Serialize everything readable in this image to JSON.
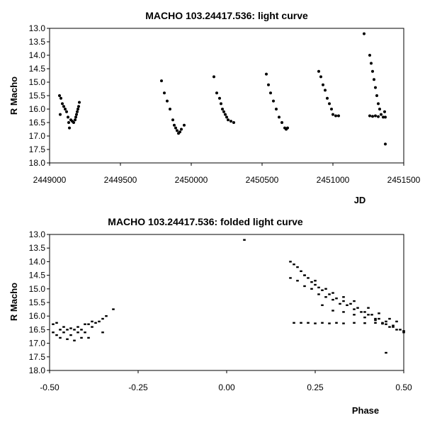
{
  "chart_data": [
    {
      "type": "scatter",
      "title": "MACHO 103.24417.536: light curve",
      "xlabel": "JD",
      "ylabel": "R Macho",
      "xlim": [
        2449000,
        2451500
      ],
      "ylim": [
        13.0,
        18.0
      ],
      "y_inverted": true,
      "xticks": [
        2449000,
        2449500,
        2450000,
        2450500,
        2451000,
        2451500
      ],
      "xtick_labels": [
        "2449000",
        "2449500",
        "2450000",
        "2450500",
        "2451000",
        "2451500"
      ],
      "yticks": [
        13.0,
        13.5,
        14.0,
        14.5,
        15.0,
        15.5,
        16.0,
        16.5,
        17.0,
        17.5,
        18.0
      ],
      "ytick_labels": [
        "13.0",
        "13.5",
        "14.0",
        "14.5",
        "15.0",
        "15.5",
        "16.0",
        "16.5",
        "17.0",
        "17.5",
        "18.0"
      ],
      "grid": false,
      "legend": "none",
      "marker_color": "#000000",
      "series": [
        {
          "points": [
            [
              2449070,
              15.5
            ],
            [
              2449080,
              15.6
            ],
            [
              2449075,
              16.2
            ],
            [
              2449090,
              15.8
            ],
            [
              2449100,
              15.9
            ],
            [
              2449110,
              16.0
            ],
            [
              2449120,
              16.1
            ],
            [
              2449130,
              16.3
            ],
            [
              2449135,
              16.5
            ],
            [
              2449140,
              16.7
            ],
            [
              2449150,
              16.4
            ],
            [
              2449160,
              16.45
            ],
            [
              2449170,
              16.5
            ],
            [
              2449180,
              16.4
            ],
            [
              2449190,
              16.2
            ],
            [
              2449200,
              16.0
            ],
            [
              2449205,
              15.9
            ],
            [
              2449210,
              15.75
            ],
            [
              2449195,
              16.1
            ],
            [
              2449185,
              16.3
            ],
            [
              2449790,
              14.95
            ],
            [
              2449810,
              15.4
            ],
            [
              2449830,
              15.7
            ],
            [
              2449850,
              16.0
            ],
            [
              2449870,
              16.4
            ],
            [
              2449880,
              16.6
            ],
            [
              2449890,
              16.7
            ],
            [
              2449900,
              16.8
            ],
            [
              2449910,
              16.9
            ],
            [
              2449920,
              16.85
            ],
            [
              2449930,
              16.75
            ],
            [
              2449950,
              16.6
            ],
            [
              2450160,
              14.8
            ],
            [
              2450180,
              15.4
            ],
            [
              2450200,
              15.6
            ],
            [
              2450210,
              15.8
            ],
            [
              2450220,
              16.0
            ],
            [
              2450230,
              16.1
            ],
            [
              2450240,
              16.2
            ],
            [
              2450250,
              16.3
            ],
            [
              2450260,
              16.4
            ],
            [
              2450280,
              16.45
            ],
            [
              2450300,
              16.5
            ],
            [
              2450530,
              14.7
            ],
            [
              2450545,
              15.1
            ],
            [
              2450560,
              15.4
            ],
            [
              2450580,
              15.7
            ],
            [
              2450600,
              16.0
            ],
            [
              2450620,
              16.3
            ],
            [
              2450640,
              16.5
            ],
            [
              2450660,
              16.7
            ],
            [
              2450670,
              16.75
            ],
            [
              2450680,
              16.7
            ],
            [
              2450900,
              14.6
            ],
            [
              2450915,
              14.8
            ],
            [
              2450930,
              15.1
            ],
            [
              2450945,
              15.3
            ],
            [
              2450960,
              15.6
            ],
            [
              2450975,
              15.8
            ],
            [
              2450990,
              16.0
            ],
            [
              2451000,
              16.2
            ],
            [
              2451020,
              16.25
            ],
            [
              2451040,
              16.25
            ],
            [
              2451220,
              13.2
            ],
            [
              2451260,
              14.0
            ],
            [
              2451270,
              14.3
            ],
            [
              2451280,
              14.6
            ],
            [
              2451290,
              14.9
            ],
            [
              2451300,
              15.2
            ],
            [
              2451310,
              15.5
            ],
            [
              2451320,
              15.8
            ],
            [
              2451330,
              16.0
            ],
            [
              2451340,
              16.2
            ],
            [
              2451355,
              16.3
            ],
            [
              2451365,
              16.1
            ],
            [
              2451370,
              16.3
            ],
            [
              2451370,
              17.3
            ],
            [
              2451260,
              16.25
            ],
            [
              2451280,
              16.27
            ],
            [
              2451300,
              16.25
            ],
            [
              2451320,
              16.28
            ]
          ]
        }
      ]
    },
    {
      "type": "scatter",
      "title": "MACHO 103.24417.536: folded light curve",
      "xlabel": "Phase",
      "ylabel": "R Macho",
      "xlim": [
        -0.5,
        0.5
      ],
      "ylim": [
        13.0,
        18.0
      ],
      "y_inverted": true,
      "xticks": [
        -0.5,
        -0.25,
        0.0,
        0.25,
        0.5
      ],
      "xtick_labels": [
        "-0.50",
        "-0.25",
        "0.00",
        "0.25",
        "0.50"
      ],
      "yticks": [
        13.0,
        13.5,
        14.0,
        14.5,
        15.0,
        15.5,
        16.0,
        16.5,
        17.0,
        17.5,
        18.0
      ],
      "ytick_labels": [
        "13.0",
        "13.5",
        "14.0",
        "14.5",
        "15.0",
        "15.5",
        "16.0",
        "16.5",
        "17.0",
        "17.5",
        "18.0"
      ],
      "grid": false,
      "legend": "none",
      "marker_color": "#000000",
      "series": [
        {
          "points": [
            [
              -0.49,
              16.3
            ],
            [
              -0.49,
              16.6
            ],
            [
              -0.48,
              16.7
            ],
            [
              -0.48,
              16.25
            ],
            [
              -0.47,
              16.5
            ],
            [
              -0.47,
              16.8
            ],
            [
              -0.46,
              16.6
            ],
            [
              -0.46,
              16.4
            ],
            [
              -0.45,
              16.5
            ],
            [
              -0.45,
              16.85
            ],
            [
              -0.44,
              16.45
            ],
            [
              -0.44,
              16.7
            ],
            [
              -0.43,
              16.5
            ],
            [
              -0.43,
              16.9
            ],
            [
              -0.42,
              16.6
            ],
            [
              -0.42,
              16.4
            ],
            [
              -0.41,
              16.5
            ],
            [
              -0.41,
              16.8
            ],
            [
              -0.4,
              16.3
            ],
            [
              -0.4,
              16.6
            ],
            [
              -0.39,
              16.3
            ],
            [
              -0.39,
              16.8
            ],
            [
              -0.38,
              16.4
            ],
            [
              -0.38,
              16.2
            ],
            [
              -0.37,
              16.25
            ],
            [
              -0.36,
              16.2
            ],
            [
              -0.35,
              16.1
            ],
            [
              -0.35,
              16.6
            ],
            [
              -0.34,
              16.0
            ],
            [
              -0.32,
              15.75
            ],
            [
              0.05,
              13.2
            ],
            [
              0.18,
              14.0
            ],
            [
              0.19,
              14.1
            ],
            [
              0.2,
              14.2
            ],
            [
              0.21,
              14.35
            ],
            [
              0.22,
              14.5
            ],
            [
              0.23,
              14.6
            ],
            [
              0.24,
              14.75
            ],
            [
              0.25,
              14.85
            ],
            [
              0.26,
              14.95
            ],
            [
              0.27,
              15.05
            ],
            [
              0.29,
              15.2
            ],
            [
              0.31,
              15.35
            ],
            [
              0.33,
              15.45
            ],
            [
              0.35,
              15.55
            ],
            [
              0.37,
              15.7
            ],
            [
              0.39,
              15.85
            ],
            [
              0.41,
              15.95
            ],
            [
              0.43,
              16.1
            ],
            [
              0.45,
              16.2
            ],
            [
              0.47,
              16.35
            ],
            [
              0.49,
              16.5
            ],
            [
              0.5,
              16.6
            ],
            [
              0.18,
              14.6
            ],
            [
              0.2,
              14.7
            ],
            [
              0.22,
              14.9
            ],
            [
              0.24,
              15.0
            ],
            [
              0.26,
              15.2
            ],
            [
              0.28,
              15.3
            ],
            [
              0.3,
              15.4
            ],
            [
              0.32,
              15.55
            ],
            [
              0.34,
              15.6
            ],
            [
              0.36,
              15.75
            ],
            [
              0.38,
              15.85
            ],
            [
              0.4,
              15.95
            ],
            [
              0.42,
              16.1
            ],
            [
              0.44,
              16.25
            ],
            [
              0.46,
              16.4
            ],
            [
              0.48,
              16.5
            ],
            [
              0.5,
              16.55
            ],
            [
              0.22,
              14.5
            ],
            [
              0.25,
              14.7
            ],
            [
              0.28,
              15.0
            ],
            [
              0.3,
              15.15
            ],
            [
              0.33,
              15.3
            ],
            [
              0.36,
              15.45
            ],
            [
              0.4,
              15.7
            ],
            [
              0.43,
              15.9
            ],
            [
              0.46,
              16.1
            ],
            [
              0.48,
              16.2
            ],
            [
              0.27,
              15.6
            ],
            [
              0.3,
              15.8
            ],
            [
              0.33,
              15.85
            ],
            [
              0.36,
              15.95
            ],
            [
              0.39,
              16.05
            ],
            [
              0.42,
              16.15
            ],
            [
              0.45,
              16.3
            ],
            [
              0.47,
              16.4
            ],
            [
              0.19,
              16.25
            ],
            [
              0.21,
              16.25
            ],
            [
              0.23,
              16.25
            ],
            [
              0.25,
              16.27
            ],
            [
              0.27,
              16.25
            ],
            [
              0.29,
              16.27
            ],
            [
              0.31,
              16.25
            ],
            [
              0.33,
              16.27
            ],
            [
              0.36,
              16.25
            ],
            [
              0.39,
              16.26
            ],
            [
              0.42,
              16.25
            ],
            [
              0.44,
              16.28
            ],
            [
              0.45,
              17.35
            ]
          ]
        }
      ]
    }
  ]
}
